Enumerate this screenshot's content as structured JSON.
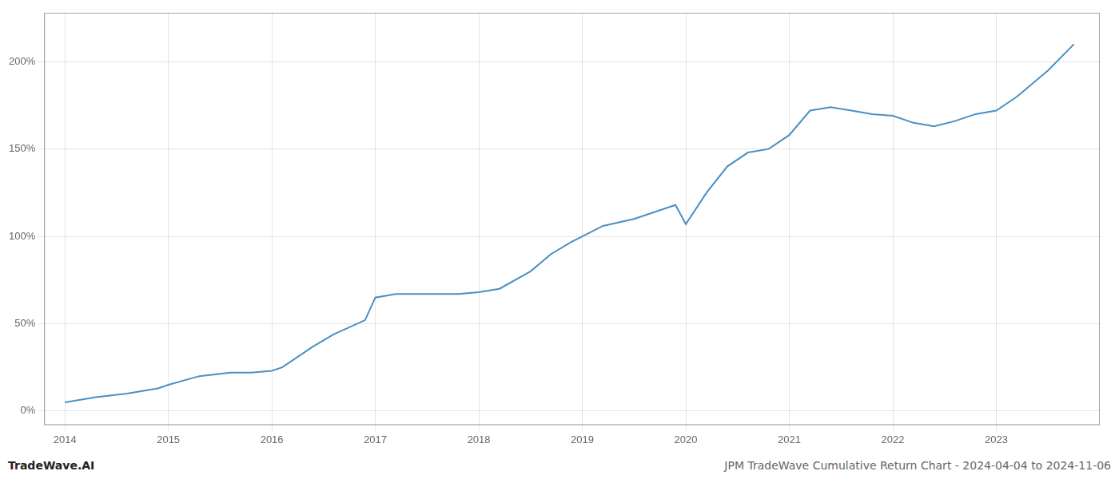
{
  "chart_data": {
    "type": "line",
    "title": "JPM TradeWave Cumulative Return Chart - 2024-04-04 to 2024-11-06",
    "annotations": [
      "TradeWave.AI"
    ],
    "color": "#4a90c4",
    "x": [
      2014.0,
      2014.3,
      2014.6,
      2014.9,
      2015.0,
      2015.3,
      2015.6,
      2015.8,
      2016.0,
      2016.1,
      2016.4,
      2016.6,
      2016.9,
      2017.0,
      2017.2,
      2017.5,
      2017.8,
      2018.0,
      2018.2,
      2018.5,
      2018.7,
      2018.9,
      2019.0,
      2019.2,
      2019.5,
      2019.7,
      2019.9,
      2020.0,
      2020.2,
      2020.4,
      2020.6,
      2020.8,
      2021.0,
      2021.2,
      2021.4,
      2021.6,
      2021.8,
      2022.0,
      2022.2,
      2022.4,
      2022.6,
      2022.8,
      2023.0,
      2023.2,
      2023.5,
      2023.75
    ],
    "values": [
      5,
      8,
      10,
      13,
      15,
      20,
      22,
      22,
      23,
      25,
      37,
      44,
      52,
      65,
      67,
      67,
      67,
      68,
      70,
      80,
      90,
      97,
      100,
      106,
      110,
      114,
      118,
      107,
      125,
      140,
      148,
      150,
      158,
      172,
      174,
      172,
      170,
      169,
      165,
      163,
      166,
      170,
      172,
      180,
      195,
      210
    ],
    "xlim": [
      2013.8,
      2024.0
    ],
    "xticks": [
      2014,
      2015,
      2016,
      2017,
      2018,
      2019,
      2020,
      2021,
      2022,
      2023
    ],
    "ylim": [
      -8,
      228
    ],
    "yticks": [
      {
        "value": 0,
        "label": "0%"
      },
      {
        "value": 50,
        "label": "50%"
      },
      {
        "value": 100,
        "label": "100%"
      },
      {
        "value": 150,
        "label": "150%"
      },
      {
        "value": 200,
        "label": "200%"
      }
    ],
    "grid": true
  }
}
